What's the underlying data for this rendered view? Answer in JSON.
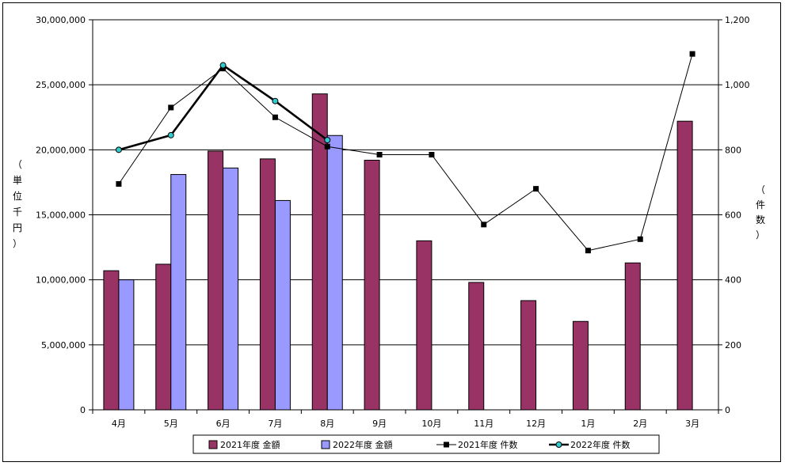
{
  "chart_data": {
    "type": "bar",
    "categories": [
      "4月",
      "5月",
      "6月",
      "7月",
      "8月",
      "9月",
      "10月",
      "11月",
      "12月",
      "1月",
      "2月",
      "3月"
    ],
    "y_left": {
      "label_chars": [
        "（",
        "単",
        "位",
        "千",
        "円",
        "）"
      ],
      "ylim": [
        0,
        30000000
      ],
      "ticks": [
        0,
        5000000,
        10000000,
        15000000,
        20000000,
        25000000,
        30000000
      ],
      "tick_labels": [
        "0",
        "5,000,000",
        "10,000,000",
        "15,000,000",
        "20,000,000",
        "25,000,000",
        "30,000,000"
      ]
    },
    "y_right": {
      "label_chars": [
        "（",
        "件",
        "数",
        "）"
      ],
      "ylim": [
        0,
        1200
      ],
      "ticks": [
        0,
        200,
        400,
        600,
        800,
        1000,
        1200
      ],
      "tick_labels": [
        "0",
        "200",
        "400",
        "600",
        "800",
        "1,000",
        "1,200"
      ]
    },
    "grid": "horizontal",
    "legend_position": "bottom",
    "series": [
      {
        "name": "2021年度 金額",
        "kind": "bar",
        "axis": "left",
        "color": "#993366",
        "values": [
          10700000,
          11200000,
          19900000,
          19300000,
          24300000,
          19200000,
          13000000,
          9800000,
          8400000,
          6800000,
          11300000,
          22200000
        ]
      },
      {
        "name": "2022年度 金額",
        "kind": "bar",
        "axis": "left",
        "color": "#9999ff",
        "values": [
          10000000,
          18100000,
          18600000,
          16100000,
          21100000,
          null,
          null,
          null,
          null,
          null,
          null,
          null
        ]
      },
      {
        "name": "2021年度 件数",
        "kind": "line",
        "axis": "right",
        "color": "#000000",
        "marker": "square",
        "values": [
          695,
          930,
          1050,
          900,
          810,
          785,
          785,
          570,
          680,
          490,
          525,
          1095
        ]
      },
      {
        "name": "2022年度 件数",
        "kind": "line",
        "axis": "right",
        "color": "#000000",
        "marker": "circle",
        "marker_color": "#33cccc",
        "values": [
          800,
          845,
          1060,
          950,
          830,
          null,
          null,
          null,
          null,
          null,
          null,
          null
        ]
      }
    ]
  }
}
